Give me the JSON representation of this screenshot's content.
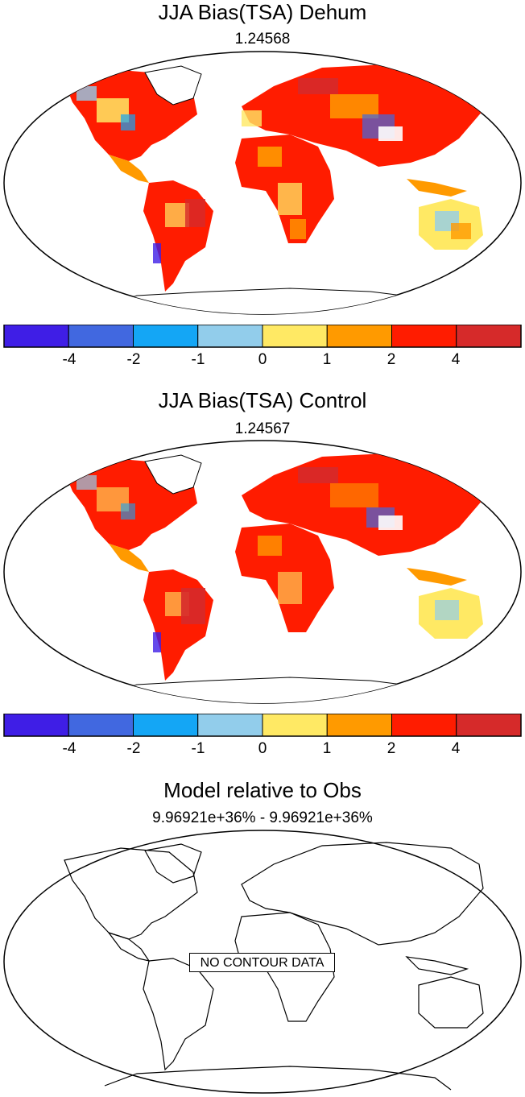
{
  "panels": [
    {
      "title": "JJA Bias(TSA) Dehum",
      "subtitle": "1.24568"
    },
    {
      "title": "JJA Bias(TSA) Control",
      "subtitle": "1.24567"
    },
    {
      "title": "Model relative to Obs",
      "subtitle": "9.96921e+36% - 9.96921e+36%",
      "message": "NO CONTOUR DATA"
    }
  ],
  "colorbar": {
    "colors": [
      "#3f1ee6",
      "#4168e0",
      "#14a6f5",
      "#92cdeb",
      "#ffe964",
      "#ff9a00",
      "#ff1c00",
      "#d62a2a"
    ],
    "labels": [
      "-4",
      "-2",
      "-1",
      "0",
      "1",
      "2",
      "4"
    ]
  }
}
